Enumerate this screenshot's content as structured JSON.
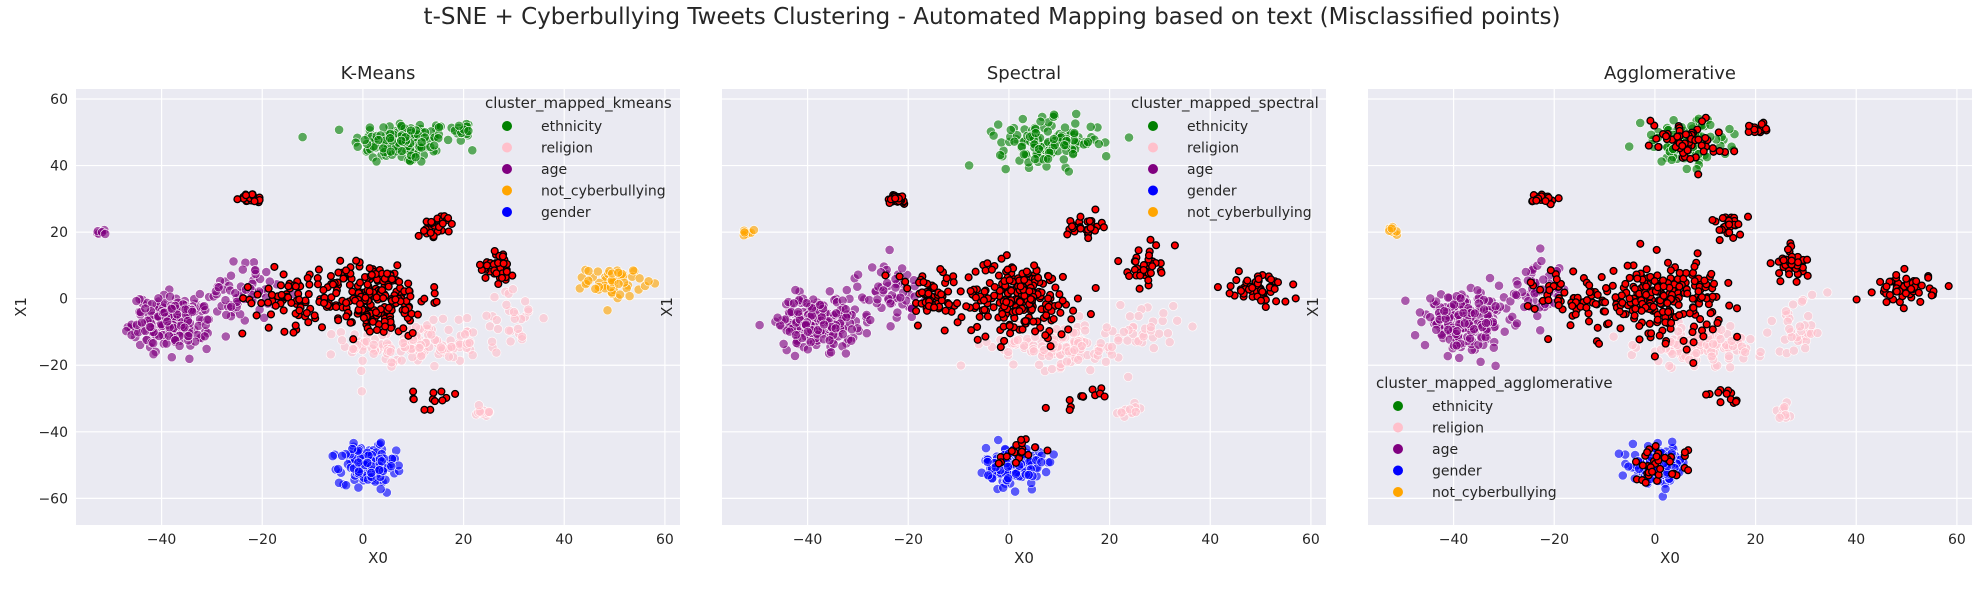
{
  "figure": {
    "title": "t-SNE + Cyberbullying Tweets Clustering - Automated Mapping based on text (Misclassified points)"
  },
  "colors": {
    "panel_bg": "#EAEAF2",
    "grid": "#FFFFFF",
    "ethnicity": "#008000",
    "religion": "#FFC0CB",
    "age": "#800080",
    "not_cyberbullying": "#FFA500",
    "gender": "#0000FF",
    "misclassified_fill": "#FF0000",
    "misclassified_edge": "#000000"
  },
  "chart_data": [
    {
      "type": "scatter",
      "title": "K-Means",
      "xlabel": "X0",
      "ylabel": "X1",
      "xlim": [
        -57,
        63
      ],
      "ylim": [
        -68,
        63
      ],
      "xticks": [
        -40,
        -20,
        0,
        20,
        40,
        60
      ],
      "yticks": [
        -60,
        -40,
        -20,
        0,
        20,
        40,
        60
      ],
      "grid": true,
      "legend_position": "upper-right",
      "legend_title": "cluster_mapped_kmeans",
      "legend": [
        "ethnicity",
        "religion",
        "age",
        "not_cyberbullying",
        "gender"
      ],
      "clusters": [
        {
          "name": "ethnicity",
          "center": [
            8,
            47
          ],
          "spread": [
            9,
            6
          ],
          "count": 140
        },
        {
          "name": "ethnicity",
          "center": [
            20,
            51
          ],
          "spread": [
            2,
            2
          ],
          "count": 16
        },
        {
          "name": "religion",
          "center": [
            10,
            -14
          ],
          "spread": [
            12,
            6
          ],
          "count": 130
        },
        {
          "name": "religion",
          "center": [
            29,
            -6
          ],
          "spread": [
            6,
            8
          ],
          "count": 30
        },
        {
          "name": "religion",
          "center": [
            24,
            -34
          ],
          "spread": [
            2,
            2
          ],
          "count": 12
        },
        {
          "name": "age",
          "center": [
            -38,
            -7
          ],
          "spread": [
            7,
            7
          ],
          "count": 220
        },
        {
          "name": "age",
          "center": [
            -24,
            2
          ],
          "spread": [
            6,
            8
          ],
          "count": 60
        },
        {
          "name": "age",
          "center": [
            -52,
            20
          ],
          "spread": [
            1,
            1
          ],
          "count": 8
        },
        {
          "name": "not_cyberbullying",
          "center": [
            50,
            5
          ],
          "spread": [
            5,
            4
          ],
          "count": 55
        },
        {
          "name": "gender",
          "center": [
            1,
            -50
          ],
          "spread": [
            5,
            5
          ],
          "count": 190
        }
      ],
      "misclassified": [
        {
          "center": [
            2,
            0
          ],
          "spread": [
            10,
            10
          ],
          "count": 220
        },
        {
          "center": [
            -22,
            30
          ],
          "spread": [
            2,
            1.5
          ],
          "count": 24
        },
        {
          "center": [
            15,
            22
          ],
          "spread": [
            3,
            3
          ],
          "count": 28
        },
        {
          "center": [
            27,
            10
          ],
          "spread": [
            3,
            5
          ],
          "count": 38
        },
        {
          "center": [
            -15,
            0
          ],
          "spread": [
            8,
            8
          ],
          "count": 60
        },
        {
          "center": [
            14,
            -30
          ],
          "spread": [
            4,
            3
          ],
          "count": 12
        }
      ]
    },
    {
      "type": "scatter",
      "title": "Spectral",
      "xlabel": "X0",
      "ylabel": "X1",
      "xlim": [
        -57,
        63
      ],
      "ylim": [
        -68,
        63
      ],
      "xticks": [
        -40,
        -20,
        0,
        20,
        40,
        60
      ],
      "yticks": [
        -60,
        -40,
        -20,
        0,
        20,
        40,
        60
      ],
      "grid": true,
      "legend_position": "upper-right",
      "legend_title": "cluster_mapped_spectral",
      "legend": [
        "ethnicity",
        "religion",
        "age",
        "gender",
        "not_cyberbullying"
      ],
      "clusters": [
        {
          "name": "ethnicity",
          "center": [
            8,
            47
          ],
          "spread": [
            9,
            6
          ],
          "count": 140
        },
        {
          "name": "religion",
          "center": [
            10,
            -14
          ],
          "spread": [
            12,
            6
          ],
          "count": 130
        },
        {
          "name": "religion",
          "center": [
            27,
            -8
          ],
          "spread": [
            6,
            8
          ],
          "count": 30
        },
        {
          "name": "religion",
          "center": [
            24,
            -34
          ],
          "spread": [
            3,
            2
          ],
          "count": 12
        },
        {
          "name": "age",
          "center": [
            -38,
            -7
          ],
          "spread": [
            7,
            7
          ],
          "count": 220
        },
        {
          "name": "age",
          "center": [
            -24,
            2
          ],
          "spread": [
            6,
            8
          ],
          "count": 60
        },
        {
          "name": "gender",
          "center": [
            1,
            -50
          ],
          "spread": [
            5,
            5
          ],
          "count": 190
        },
        {
          "name": "not_cyberbullying",
          "center": [
            -52,
            20
          ],
          "spread": [
            1,
            1
          ],
          "count": 8
        }
      ],
      "misclassified": [
        {
          "center": [
            2,
            0
          ],
          "spread": [
            10,
            10
          ],
          "count": 220
        },
        {
          "center": [
            -22,
            30
          ],
          "spread": [
            2,
            1.5
          ],
          "count": 24
        },
        {
          "center": [
            15,
            22
          ],
          "spread": [
            3,
            3
          ],
          "count": 28
        },
        {
          "center": [
            27,
            10
          ],
          "spread": [
            3,
            5
          ],
          "count": 38
        },
        {
          "center": [
            -15,
            0
          ],
          "spread": [
            8,
            8
          ],
          "count": 60
        },
        {
          "center": [
            50,
            3
          ],
          "spread": [
            5,
            4
          ],
          "count": 60
        },
        {
          "center": [
            14,
            -30
          ],
          "spread": [
            4,
            3
          ],
          "count": 12
        },
        {
          "center": [
            1,
            -46
          ],
          "spread": [
            4,
            4
          ],
          "count": 18
        }
      ]
    },
    {
      "type": "scatter",
      "title": "Agglomerative",
      "xlabel": "X0",
      "ylabel": "X1",
      "xlim": [
        -57,
        63
      ],
      "ylim": [
        -68,
        63
      ],
      "xticks": [
        -40,
        -20,
        0,
        20,
        40,
        60
      ],
      "yticks": [
        -60,
        -40,
        -20,
        0,
        20,
        40,
        60
      ],
      "grid": true,
      "legend_position": "lower-left",
      "legend_title": "cluster_mapped_agglomerative",
      "legend": [
        "ethnicity",
        "religion",
        "age",
        "gender",
        "not_cyberbullying"
      ],
      "clusters": [
        {
          "name": "ethnicity",
          "center": [
            6,
            47
          ],
          "spread": [
            8,
            6
          ],
          "count": 100
        },
        {
          "name": "religion",
          "center": [
            10,
            -14
          ],
          "spread": [
            12,
            6
          ],
          "count": 130
        },
        {
          "name": "religion",
          "center": [
            29,
            -8
          ],
          "spread": [
            5,
            8
          ],
          "count": 30
        },
        {
          "name": "religion",
          "center": [
            26,
            -34
          ],
          "spread": [
            2,
            2
          ],
          "count": 10
        },
        {
          "name": "age",
          "center": [
            -38,
            -7
          ],
          "spread": [
            7,
            7
          ],
          "count": 220
        },
        {
          "name": "age",
          "center": [
            -24,
            2
          ],
          "spread": [
            6,
            8
          ],
          "count": 60
        },
        {
          "name": "gender",
          "center": [
            1,
            -50
          ],
          "spread": [
            5,
            5
          ],
          "count": 150
        },
        {
          "name": "not_cyberbullying",
          "center": [
            -52,
            20
          ],
          "spread": [
            1,
            1
          ],
          "count": 8
        }
      ],
      "misclassified": [
        {
          "center": [
            2,
            0
          ],
          "spread": [
            10,
            10
          ],
          "count": 220
        },
        {
          "center": [
            6,
            48
          ],
          "spread": [
            7,
            6
          ],
          "count": 60
        },
        {
          "center": [
            20,
            51
          ],
          "spread": [
            2,
            2
          ],
          "count": 14
        },
        {
          "center": [
            -22,
            30
          ],
          "spread": [
            2,
            1.5
          ],
          "count": 24
        },
        {
          "center": [
            15,
            22
          ],
          "spread": [
            3,
            3
          ],
          "count": 28
        },
        {
          "center": [
            27,
            10
          ],
          "spread": [
            3,
            5
          ],
          "count": 38
        },
        {
          "center": [
            -15,
            0
          ],
          "spread": [
            8,
            8
          ],
          "count": 60
        },
        {
          "center": [
            50,
            3
          ],
          "spread": [
            5,
            4
          ],
          "count": 60
        },
        {
          "center": [
            14,
            -30
          ],
          "spread": [
            4,
            3
          ],
          "count": 12
        },
        {
          "center": [
            1,
            -50
          ],
          "spread": [
            5,
            5
          ],
          "count": 40
        }
      ]
    }
  ]
}
